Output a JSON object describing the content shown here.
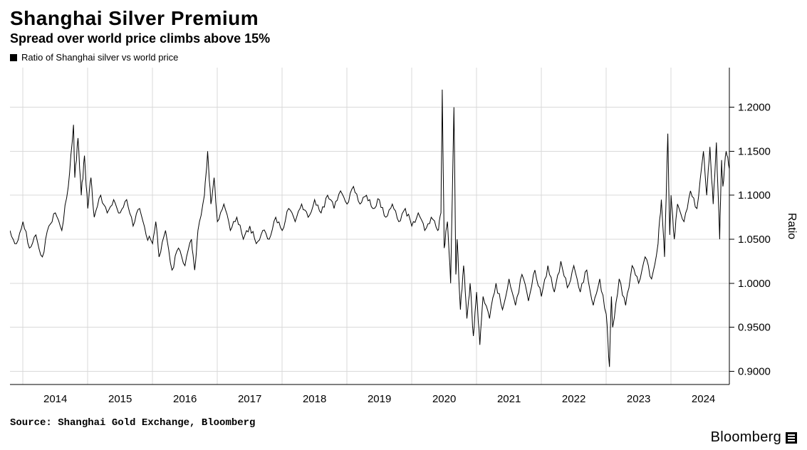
{
  "title": "Shanghai Silver Premium",
  "subtitle": "Spread over world price climbs above 15%",
  "legend": {
    "label": "Ratio of Shanghai silver vs world price",
    "swatch_color": "#000000"
  },
  "source": "Source: Shanghai Gold Exchange, Bloomberg",
  "brand": "Bloomberg",
  "chart": {
    "type": "line",
    "background_color": "#ffffff",
    "grid_color": "#d9d9d9",
    "axis_color": "#000000",
    "line_color": "#000000",
    "line_width": 1,
    "x": {
      "start_year": 2013.3,
      "end_year": 2024.4,
      "tick_years": [
        2014,
        2015,
        2016,
        2017,
        2018,
        2019,
        2020,
        2021,
        2022,
        2023,
        2024
      ]
    },
    "y": {
      "min": 0.885,
      "max": 1.245,
      "ticks": [
        0.9,
        0.95,
        1.0,
        1.05,
        1.1,
        1.15,
        1.2
      ],
      "title": "Ratio",
      "label_decimals": 4
    },
    "series": [
      {
        "name": "Ratio of Shanghai silver vs world price",
        "color": "#000000",
        "segments": [
          [
            2013.3,
            1.06
          ],
          [
            2013.4,
            1.045
          ],
          [
            2013.5,
            1.07
          ],
          [
            2013.6,
            1.04
          ],
          [
            2013.7,
            1.055
          ],
          [
            2013.8,
            1.03
          ],
          [
            2013.9,
            1.065
          ],
          [
            2014.0,
            1.08
          ],
          [
            2014.1,
            1.06
          ],
          [
            2014.2,
            1.11
          ],
          [
            2014.28,
            1.18
          ],
          [
            2014.3,
            1.12
          ],
          [
            2014.35,
            1.165
          ],
          [
            2014.4,
            1.1
          ],
          [
            2014.45,
            1.145
          ],
          [
            2014.5,
            1.085
          ],
          [
            2014.55,
            1.12
          ],
          [
            2014.6,
            1.075
          ],
          [
            2014.7,
            1.1
          ],
          [
            2014.8,
            1.08
          ],
          [
            2014.9,
            1.095
          ],
          [
            2015.0,
            1.08
          ],
          [
            2015.1,
            1.095
          ],
          [
            2015.2,
            1.065
          ],
          [
            2015.3,
            1.085
          ],
          [
            2015.4,
            1.055
          ],
          [
            2015.5,
            1.045
          ],
          [
            2015.55,
            1.07
          ],
          [
            2015.6,
            1.03
          ],
          [
            2015.7,
            1.06
          ],
          [
            2015.8,
            1.015
          ],
          [
            2015.9,
            1.04
          ],
          [
            2016.0,
            1.02
          ],
          [
            2016.1,
            1.05
          ],
          [
            2016.15,
            1.015
          ],
          [
            2016.2,
            1.06
          ],
          [
            2016.3,
            1.1
          ],
          [
            2016.35,
            1.15
          ],
          [
            2016.4,
            1.09
          ],
          [
            2016.45,
            1.12
          ],
          [
            2016.5,
            1.07
          ],
          [
            2016.6,
            1.09
          ],
          [
            2016.7,
            1.06
          ],
          [
            2016.8,
            1.075
          ],
          [
            2016.9,
            1.05
          ],
          [
            2017.0,
            1.065
          ],
          [
            2017.1,
            1.045
          ],
          [
            2017.2,
            1.06
          ],
          [
            2017.3,
            1.05
          ],
          [
            2017.4,
            1.075
          ],
          [
            2017.5,
            1.06
          ],
          [
            2017.6,
            1.085
          ],
          [
            2017.7,
            1.07
          ],
          [
            2017.8,
            1.09
          ],
          [
            2017.9,
            1.075
          ],
          [
            2018.0,
            1.095
          ],
          [
            2018.1,
            1.08
          ],
          [
            2018.2,
            1.1
          ],
          [
            2018.3,
            1.085
          ],
          [
            2018.4,
            1.105
          ],
          [
            2018.5,
            1.09
          ],
          [
            2018.6,
            1.11
          ],
          [
            2018.7,
            1.09
          ],
          [
            2018.8,
            1.1
          ],
          [
            2018.9,
            1.085
          ],
          [
            2019.0,
            1.095
          ],
          [
            2019.1,
            1.075
          ],
          [
            2019.2,
            1.09
          ],
          [
            2019.3,
            1.07
          ],
          [
            2019.4,
            1.085
          ],
          [
            2019.5,
            1.065
          ],
          [
            2019.6,
            1.08
          ],
          [
            2019.7,
            1.06
          ],
          [
            2019.8,
            1.075
          ],
          [
            2019.9,
            1.06
          ],
          [
            2019.95,
            1.08
          ],
          [
            2019.97,
            1.22
          ],
          [
            2020.0,
            1.04
          ],
          [
            2020.05,
            1.07
          ],
          [
            2020.1,
            1.0
          ],
          [
            2020.15,
            1.2
          ],
          [
            2020.18,
            1.01
          ],
          [
            2020.2,
            1.05
          ],
          [
            2020.25,
            0.97
          ],
          [
            2020.3,
            1.02
          ],
          [
            2020.35,
            0.96
          ],
          [
            2020.4,
            1.0
          ],
          [
            2020.45,
            0.94
          ],
          [
            2020.5,
            0.99
          ],
          [
            2020.55,
            0.93
          ],
          [
            2020.6,
            0.985
          ],
          [
            2020.7,
            0.96
          ],
          [
            2020.8,
            1.0
          ],
          [
            2020.9,
            0.97
          ],
          [
            2021.0,
            1.005
          ],
          [
            2021.1,
            0.975
          ],
          [
            2021.2,
            1.01
          ],
          [
            2021.3,
            0.98
          ],
          [
            2021.4,
            1.015
          ],
          [
            2021.5,
            0.985
          ],
          [
            2021.6,
            1.02
          ],
          [
            2021.7,
            0.99
          ],
          [
            2021.8,
            1.025
          ],
          [
            2021.9,
            0.995
          ],
          [
            2022.0,
            1.02
          ],
          [
            2022.1,
            0.99
          ],
          [
            2022.2,
            1.015
          ],
          [
            2022.3,
            0.975
          ],
          [
            2022.4,
            1.005
          ],
          [
            2022.5,
            0.965
          ],
          [
            2022.55,
            0.905
          ],
          [
            2022.58,
            0.985
          ],
          [
            2022.6,
            0.95
          ],
          [
            2022.7,
            1.005
          ],
          [
            2022.8,
            0.975
          ],
          [
            2022.9,
            1.02
          ],
          [
            2023.0,
            1.0
          ],
          [
            2023.1,
            1.03
          ],
          [
            2023.2,
            1.005
          ],
          [
            2023.3,
            1.045
          ],
          [
            2023.35,
            1.095
          ],
          [
            2023.4,
            1.03
          ],
          [
            2023.45,
            1.17
          ],
          [
            2023.48,
            1.055
          ],
          [
            2023.5,
            1.1
          ],
          [
            2023.55,
            1.05
          ],
          [
            2023.6,
            1.09
          ],
          [
            2023.7,
            1.07
          ],
          [
            2023.8,
            1.105
          ],
          [
            2023.9,
            1.085
          ],
          [
            2024.0,
            1.15
          ],
          [
            2024.05,
            1.1
          ],
          [
            2024.1,
            1.155
          ],
          [
            2024.15,
            1.09
          ],
          [
            2024.2,
            1.16
          ],
          [
            2024.25,
            1.05
          ],
          [
            2024.28,
            1.14
          ],
          [
            2024.3,
            1.11
          ],
          [
            2024.35,
            1.15
          ],
          [
            2024.4,
            1.13
          ]
        ]
      }
    ]
  }
}
